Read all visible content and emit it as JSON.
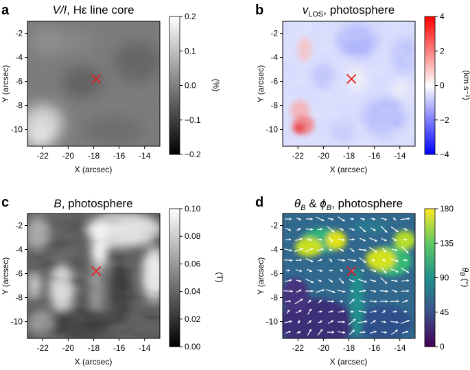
{
  "colors": {
    "marker": "#e41a1c",
    "arrow": "#ffffff",
    "frame": "#000000"
  },
  "chart_data": [
    {
      "panel_label": "a",
      "type": "heatmap",
      "title_parts": {
        "main": "V/I",
        "rest": ", Hε line core"
      },
      "title": "V/I, Hε line core",
      "xlabel": "X (arcsec)",
      "ylabel": "Y (arcsec)",
      "xlim": [
        -23.2,
        -12.8
      ],
      "ylim": [
        -11.4,
        -1.0
      ],
      "xticks": [
        -22,
        -20,
        -18,
        -16,
        -14
      ],
      "xtick_labels": [
        "-22",
        "-20",
        "-18",
        "-16",
        "-14"
      ],
      "yticks": [
        -2,
        -4,
        -6,
        -8,
        -10
      ],
      "ytick_labels": [
        "-2",
        "-4",
        "-6",
        "-8",
        "-10"
      ],
      "colormap": "gray",
      "colorbar": {
        "label": "(%)",
        "range": [
          -0.2,
          0.2
        ],
        "ticks": [
          -0.2,
          -0.1,
          0.0,
          0.1,
          0.2
        ],
        "tick_labels": [
          "−0.2",
          "−0.1",
          "0.0",
          "0.1",
          "0.2"
        ]
      },
      "marker": {
        "x": -17.8,
        "y": -5.8,
        "symbol": "x"
      }
    },
    {
      "panel_label": "b",
      "type": "heatmap",
      "title_parts": {
        "main": "v",
        "sub": "LOS",
        "rest": ", photosphere"
      },
      "title": "vLOS, photosphere",
      "xlabel": "X (arcsec)",
      "ylabel": "Y (arcsec)",
      "xlim": [
        -23.2,
        -12.8
      ],
      "ylim": [
        -11.4,
        -1.0
      ],
      "xticks": [
        -22,
        -20,
        -18,
        -16,
        -14
      ],
      "xtick_labels": [
        "-22",
        "-20",
        "-18",
        "-16",
        "-14"
      ],
      "yticks": [
        -2,
        -4,
        -6,
        -8,
        -10
      ],
      "ytick_labels": [
        "-2",
        "-4",
        "-6",
        "-8",
        "-10"
      ],
      "colormap": "bwr",
      "colorbar": {
        "label": "(km s⁻¹)",
        "range": [
          -4,
          4
        ],
        "ticks": [
          -4,
          -2,
          0,
          2,
          4
        ],
        "tick_labels": [
          "−4",
          "−2",
          "0",
          "2",
          "4"
        ]
      },
      "marker": {
        "x": -17.8,
        "y": -5.8,
        "symbol": "x"
      }
    },
    {
      "panel_label": "c",
      "type": "heatmap",
      "title_parts": {
        "main": "B",
        "rest": ", photosphere"
      },
      "title": "B, photosphere",
      "xlabel": "X (arcsec)",
      "ylabel": "Y (arcsec)",
      "xlim": [
        -23.2,
        -12.8
      ],
      "ylim": [
        -11.4,
        -1.0
      ],
      "xticks": [
        -22,
        -20,
        -18,
        -16,
        -14
      ],
      "xtick_labels": [
        "-22",
        "-20",
        "-18",
        "-16",
        "-14"
      ],
      "yticks": [
        -2,
        -4,
        -6,
        -8,
        -10
      ],
      "ytick_labels": [
        "-2",
        "-4",
        "-6",
        "-8",
        "-10"
      ],
      "colormap": "gray",
      "colorbar": {
        "label": "(T)",
        "range": [
          0.0,
          0.1
        ],
        "ticks": [
          0.0,
          0.02,
          0.04,
          0.06,
          0.08,
          0.1
        ],
        "tick_labels": [
          "0.00",
          "0.02",
          "0.04",
          "0.06",
          "0.08",
          "0.10"
        ]
      },
      "marker": {
        "x": -17.8,
        "y": -5.8,
        "symbol": "x"
      }
    },
    {
      "panel_label": "d",
      "type": "heatmap",
      "title_parts": {
        "theta": "θ",
        "phi": "ϕ",
        "sub": "B",
        "amp": " & ",
        "rest": ", photosphere"
      },
      "title": "θB & ϕB, photosphere",
      "xlabel": "X (arcsec)",
      "ylabel": "Y (arcsec)",
      "xlim": [
        -23.2,
        -12.8
      ],
      "ylim": [
        -11.4,
        -1.0
      ],
      "xticks": [
        -22,
        -20,
        -18,
        -16,
        -14
      ],
      "xtick_labels": [
        "-22",
        "-20",
        "-18",
        "-16",
        "-14"
      ],
      "yticks": [
        -2,
        -4,
        -6,
        -8,
        -10
      ],
      "ytick_labels": [
        "-2",
        "-4",
        "-6",
        "-8",
        "-10"
      ],
      "colormap": "viridis",
      "overlay": "white arrows showing azimuth ϕB",
      "colorbar": {
        "label_main": "θ",
        "label_sub": "B",
        "label_unit": " (°)",
        "range": [
          0,
          180
        ],
        "ticks": [
          0,
          45,
          90,
          135,
          180
        ],
        "tick_labels": [
          "0",
          "45",
          "90",
          "135",
          "180"
        ]
      },
      "marker": {
        "x": -17.8,
        "y": -5.8,
        "symbol": "x"
      }
    }
  ]
}
